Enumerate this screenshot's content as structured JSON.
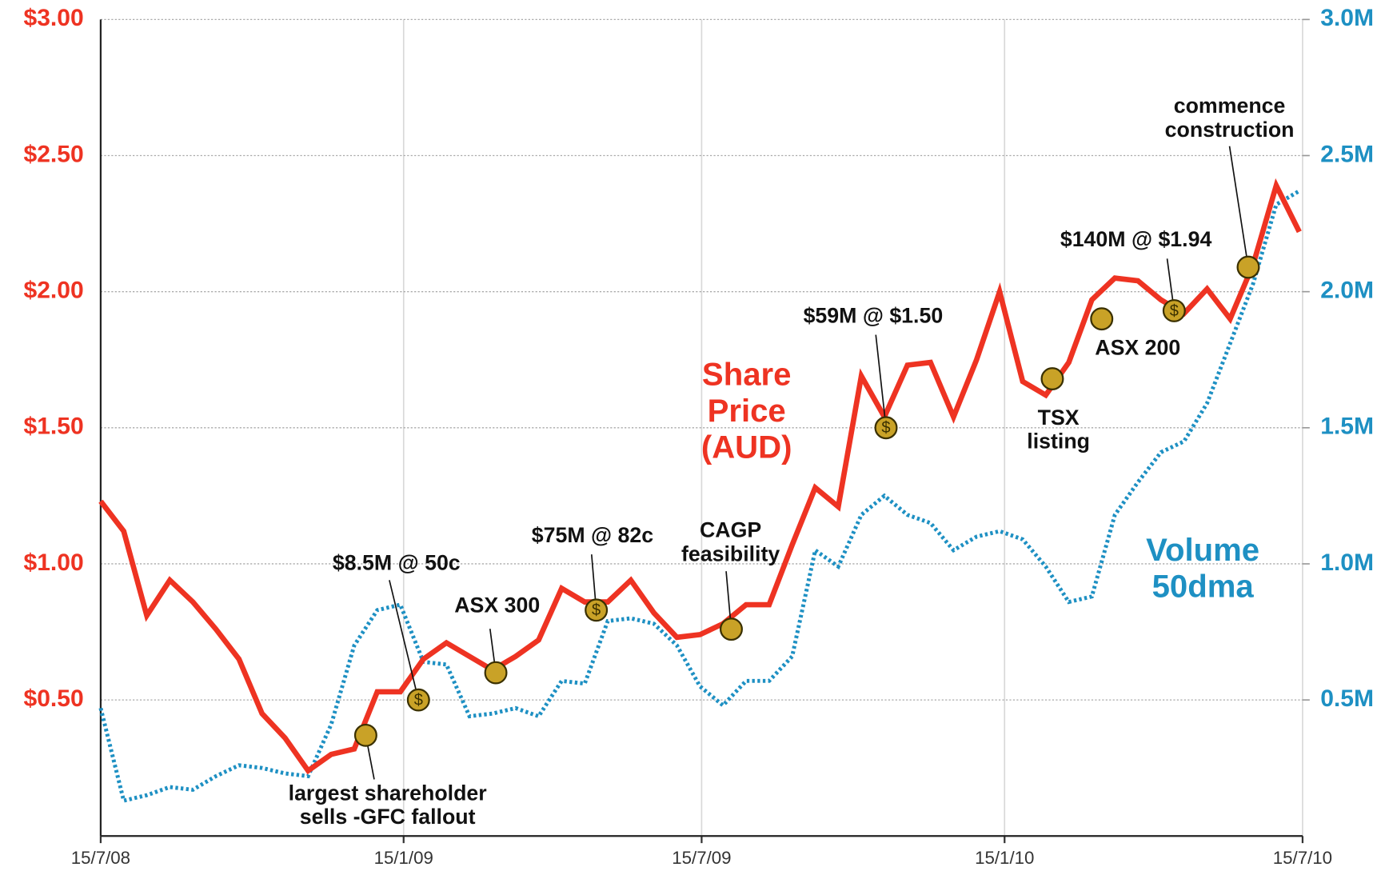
{
  "chart_data": {
    "type": "line",
    "xlim": [
      "2008-07-15",
      "2010-07-15"
    ],
    "xticks": [
      {
        "value": "2008-07-15",
        "label": "15/7/08"
      },
      {
        "value": "2009-01-15",
        "label": "15/1/09"
      },
      {
        "value": "2009-07-15",
        "label": "15/7/09"
      },
      {
        "value": "2010-01-15",
        "label": "15/1/10"
      },
      {
        "value": "2010-07-15",
        "label": "15/7/10"
      }
    ],
    "ylim": [
      0,
      3
    ],
    "yticks": [
      {
        "value": 0.5,
        "label": "$0.50"
      },
      {
        "value": 1,
        "label": "$1.00"
      },
      {
        "value": 1.5,
        "label": "$1.50"
      },
      {
        "value": 2,
        "label": "$2.00"
      },
      {
        "value": 2.5,
        "label": "$2.50"
      },
      {
        "value": 3,
        "label": "$3.00"
      }
    ],
    "y2lim": [
      0,
      3
    ],
    "y2ticks": [
      {
        "value": 0.5,
        "label": "0.5M"
      },
      {
        "value": 1,
        "label": "1.0M"
      },
      {
        "value": 1.5,
        "label": "1.5M"
      },
      {
        "value": 2,
        "label": "2.0M"
      },
      {
        "value": 2.5,
        "label": "2.5M"
      },
      {
        "value": 3,
        "label": "3.0M"
      }
    ],
    "grid": true,
    "x": [
      "2008-07-15",
      "2008-07-29",
      "2008-08-12",
      "2008-08-26",
      "2008-09-09",
      "2008-09-23",
      "2008-10-07",
      "2008-10-21",
      "2008-11-04",
      "2008-11-18",
      "2008-12-02",
      "2008-12-16",
      "2008-12-30",
      "2009-01-13",
      "2009-01-27",
      "2009-02-10",
      "2009-02-24",
      "2009-03-10",
      "2009-03-24",
      "2009-04-07",
      "2009-04-21",
      "2009-05-05",
      "2009-05-19",
      "2009-06-02",
      "2009-06-16",
      "2009-06-30",
      "2009-07-14",
      "2009-07-28",
      "2009-08-11",
      "2009-08-25",
      "2009-09-08",
      "2009-09-22",
      "2009-10-06",
      "2009-10-20",
      "2009-11-03",
      "2009-11-17",
      "2009-12-01",
      "2009-12-15",
      "2009-12-29",
      "2010-01-12",
      "2010-01-26",
      "2010-02-09",
      "2010-02-23",
      "2010-03-09",
      "2010-03-23",
      "2010-04-06",
      "2010-04-20",
      "2010-05-04",
      "2010-05-18",
      "2010-06-01",
      "2010-06-15",
      "2010-06-29",
      "2010-07-13"
    ],
    "series": [
      {
        "name": "Share Price (AUD)",
        "color": "#ee3322",
        "axis": "y",
        "style": "solid",
        "values": [
          1.23,
          1.12,
          0.81,
          0.94,
          0.86,
          0.76,
          0.65,
          0.45,
          0.36,
          0.24,
          0.3,
          0.32,
          0.53,
          0.53,
          0.65,
          0.71,
          0.66,
          0.61,
          0.66,
          0.72,
          0.91,
          0.86,
          0.86,
          0.94,
          0.82,
          0.73,
          0.74,
          0.78,
          0.85,
          0.85,
          1.07,
          1.28,
          1.21,
          1.69,
          1.54,
          1.73,
          1.74,
          1.54,
          1.75,
          2.0,
          1.67,
          1.62,
          1.74,
          1.97,
          2.05,
          2.04,
          1.97,
          1.92,
          2.01,
          1.9,
          2.1,
          2.39,
          2.22
        ]
      },
      {
        "name": "Volume 50dma",
        "color": "#1e90c3",
        "axis": "y2",
        "style": "dotted",
        "values": [
          0.47,
          0.13,
          0.15,
          0.18,
          0.17,
          0.22,
          0.26,
          0.25,
          0.23,
          0.22,
          0.41,
          0.7,
          0.83,
          0.85,
          0.64,
          0.63,
          0.44,
          0.45,
          0.47,
          0.44,
          0.57,
          0.56,
          0.79,
          0.8,
          0.78,
          0.7,
          0.55,
          0.48,
          0.57,
          0.57,
          0.66,
          1.05,
          0.99,
          1.18,
          1.25,
          1.18,
          1.15,
          1.05,
          1.1,
          1.12,
          1.09,
          0.99,
          0.86,
          0.88,
          1.18,
          1.3,
          1.41,
          1.45,
          1.59,
          1.81,
          2.03,
          2.32,
          2.37
        ]
      }
    ],
    "events": [
      {
        "label": [
          "largest shareholder",
          "sells -GFC fallout"
        ],
        "x": "2008-12-23",
        "y": 0.37
      },
      {
        "label": [
          "$8.5M @ 50c"
        ],
        "x": "2009-01-24",
        "y": 0.5,
        "symbol": "$"
      },
      {
        "label": [
          "ASX 300"
        ],
        "x": "2009-03-12",
        "y": 0.6
      },
      {
        "label": [
          "$75M @ 82c"
        ],
        "x": "2009-05-12",
        "y": 0.83,
        "symbol": "$"
      },
      {
        "label": [
          "CAGP",
          "feasibility"
        ],
        "x": "2009-08-02",
        "y": 0.76
      },
      {
        "label": [
          "$59M @ $1.50"
        ],
        "x": "2009-11-04",
        "y": 1.5,
        "symbol": "$"
      },
      {
        "label": [
          "TSX",
          "listing"
        ],
        "x": "2010-02-13",
        "y": 1.68
      },
      {
        "label": [
          "ASX 200"
        ],
        "x": "2010-03-15",
        "y": 1.9
      },
      {
        "label": [
          "$140M @ $1.94"
        ],
        "x": "2010-04-28",
        "y": 1.93,
        "symbol": "$"
      },
      {
        "label": [
          "commence",
          "construction"
        ],
        "x": "2010-06-12",
        "y": 2.09
      }
    ]
  }
}
